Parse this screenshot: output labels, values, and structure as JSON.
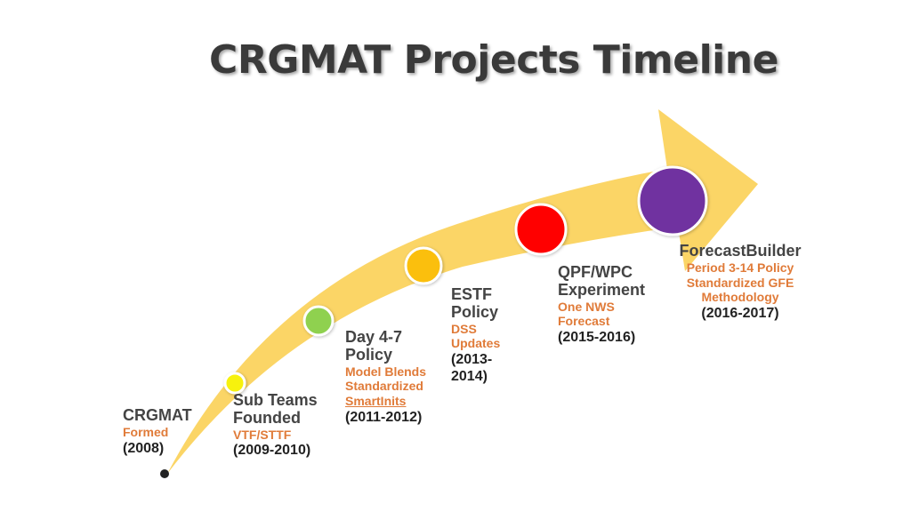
{
  "title": "CRGMAT Projects Timeline",
  "colors": {
    "arrow": "#fbd566",
    "milestone_text": "#e07b39",
    "title_text": "#3a3a3a"
  },
  "milestones": [
    {
      "name": "CRGMAT",
      "subs": [
        "Formed"
      ],
      "years": "(2008)",
      "color": "#222222"
    },
    {
      "name": "Sub Teams Founded",
      "subs": [
        "VTF/STTF"
      ],
      "years": "(2009-2010)",
      "color": "#f7f20a"
    },
    {
      "name": "Day 4-7 Policy",
      "subs": [
        "Model Blends",
        "Standardized",
        "SmartInits"
      ],
      "years": "(2011-2012)",
      "color": "#8fd14f"
    },
    {
      "name": "ESTF Policy",
      "subs": [
        "DSS Updates"
      ],
      "years": "(2013-2014)",
      "color": "#fbbf07"
    },
    {
      "name": "QPF/WPC Experiment",
      "subs": [
        "One NWS",
        "Forecast"
      ],
      "years": "(2015-2016)",
      "color": "#ff0000"
    },
    {
      "name": "ForecastBuilder",
      "subs": [
        "Period 3-14 Policy",
        "Standardized GFE",
        "Methodology"
      ],
      "years": "(2016-2017)",
      "color": "#7030a0"
    }
  ]
}
